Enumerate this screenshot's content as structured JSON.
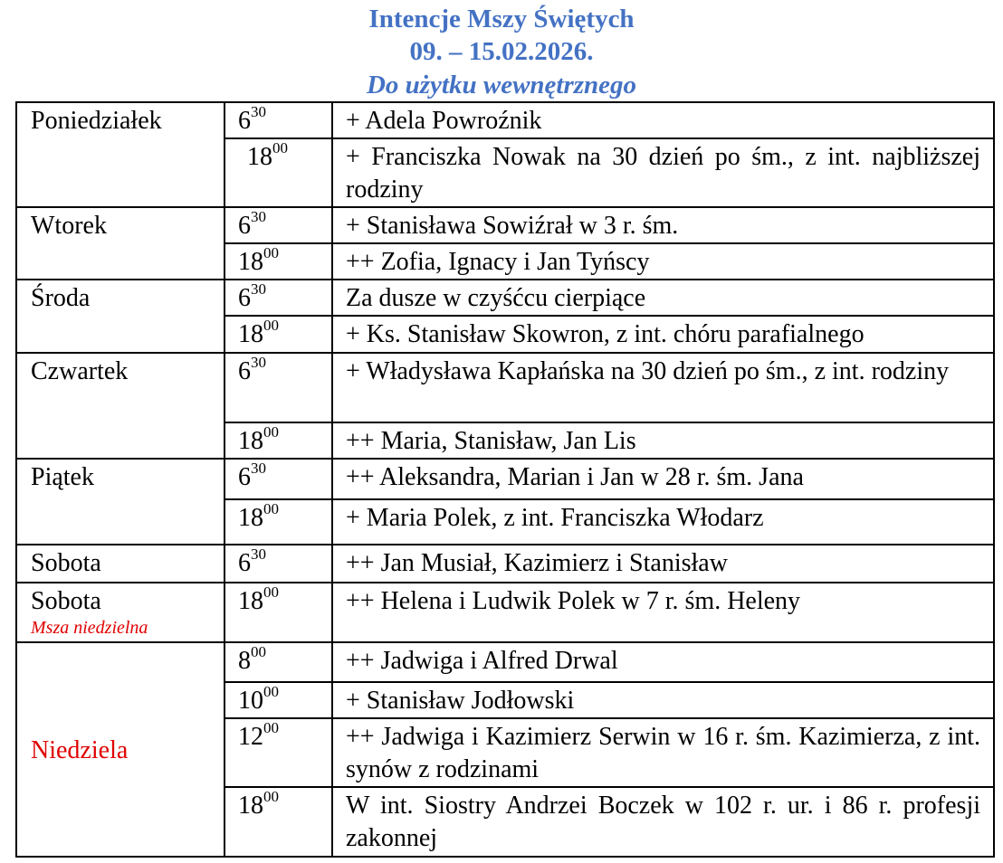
{
  "header": {
    "title": "Intencje Mszy Świętych",
    "dates": "09. – 15.02.2026.",
    "subtitle": "Do użytku wewnętrznego"
  },
  "days": [
    {
      "name": "Poniedziałek",
      "masses": [
        {
          "hour": "6",
          "min": "30",
          "intention": "+ Adela Powroźnik"
        },
        {
          "hour": "18",
          "min": "00",
          "intention": "+ Franciszka Nowak na 30 dzień po śm., z int. najbliższej rodziny"
        }
      ]
    },
    {
      "name": "Wtorek",
      "masses": [
        {
          "hour": "6",
          "min": "30",
          "intention": "+ Stanisława Sowiźrał w 3 r. śm."
        },
        {
          "hour": "18",
          "min": "00",
          "intention": "++ Zofia, Ignacy i Jan Tyńscy"
        }
      ]
    },
    {
      "name": "Środa",
      "masses": [
        {
          "hour": "6",
          "min": "30",
          "intention": "Za dusze w czyśćcu cierpiące"
        },
        {
          "hour": "18",
          "min": "00",
          "intention": "+ Ks. Stanisław Skowron, z int. chóru parafialnego"
        }
      ]
    },
    {
      "name": "Czwartek",
      "masses": [
        {
          "hour": "6",
          "min": "30",
          "intention": "+ Władysława Kapłańska na 30 dzień po śm., z int. rodziny"
        },
        {
          "hour": "18",
          "min": "00",
          "intention": "++ Maria, Stanisław, Jan Lis"
        }
      ]
    },
    {
      "name": "Piątek",
      "masses": [
        {
          "hour": "6",
          "min": "30",
          "intention": "++ Aleksandra, Marian i Jan w 28 r. śm. Jana"
        },
        {
          "hour": "18",
          "min": "00",
          "intention": "+ Maria Polek, z int. Franciszka Włodarz"
        }
      ]
    },
    {
      "name": "Sobota",
      "masses": [
        {
          "hour": "6",
          "min": "30",
          "intention": "++ Jan Musiał, Kazimierz i Stanisław"
        }
      ]
    },
    {
      "name": "Sobota",
      "note": "Msza niedzielna",
      "masses": [
        {
          "hour": "18",
          "min": "00",
          "intention": "++ Helena i Ludwik Polek w 7 r. śm. Heleny"
        }
      ]
    },
    {
      "name": "Niedziela",
      "highlight": true,
      "masses": [
        {
          "hour": "8",
          "min": "00",
          "intention": "++ Jadwiga i Alfred Drwal"
        },
        {
          "hour": "10",
          "min": "00",
          "intention": "+ Stanisław Jodłowski"
        },
        {
          "hour": "12",
          "min": "00",
          "intention": "++ Jadwiga i Kazimierz Serwin w 16 r. śm. Kazimierza, z int. synów z rodzinami"
        },
        {
          "hour": "18",
          "min": "00",
          "intention": "W int. Siostry Andrzei Boczek w 102 r. ur. i 86 r. profesji zakonnej"
        }
      ]
    }
  ],
  "colors": {
    "title": "#4472c4",
    "sunday": "#e00000"
  }
}
